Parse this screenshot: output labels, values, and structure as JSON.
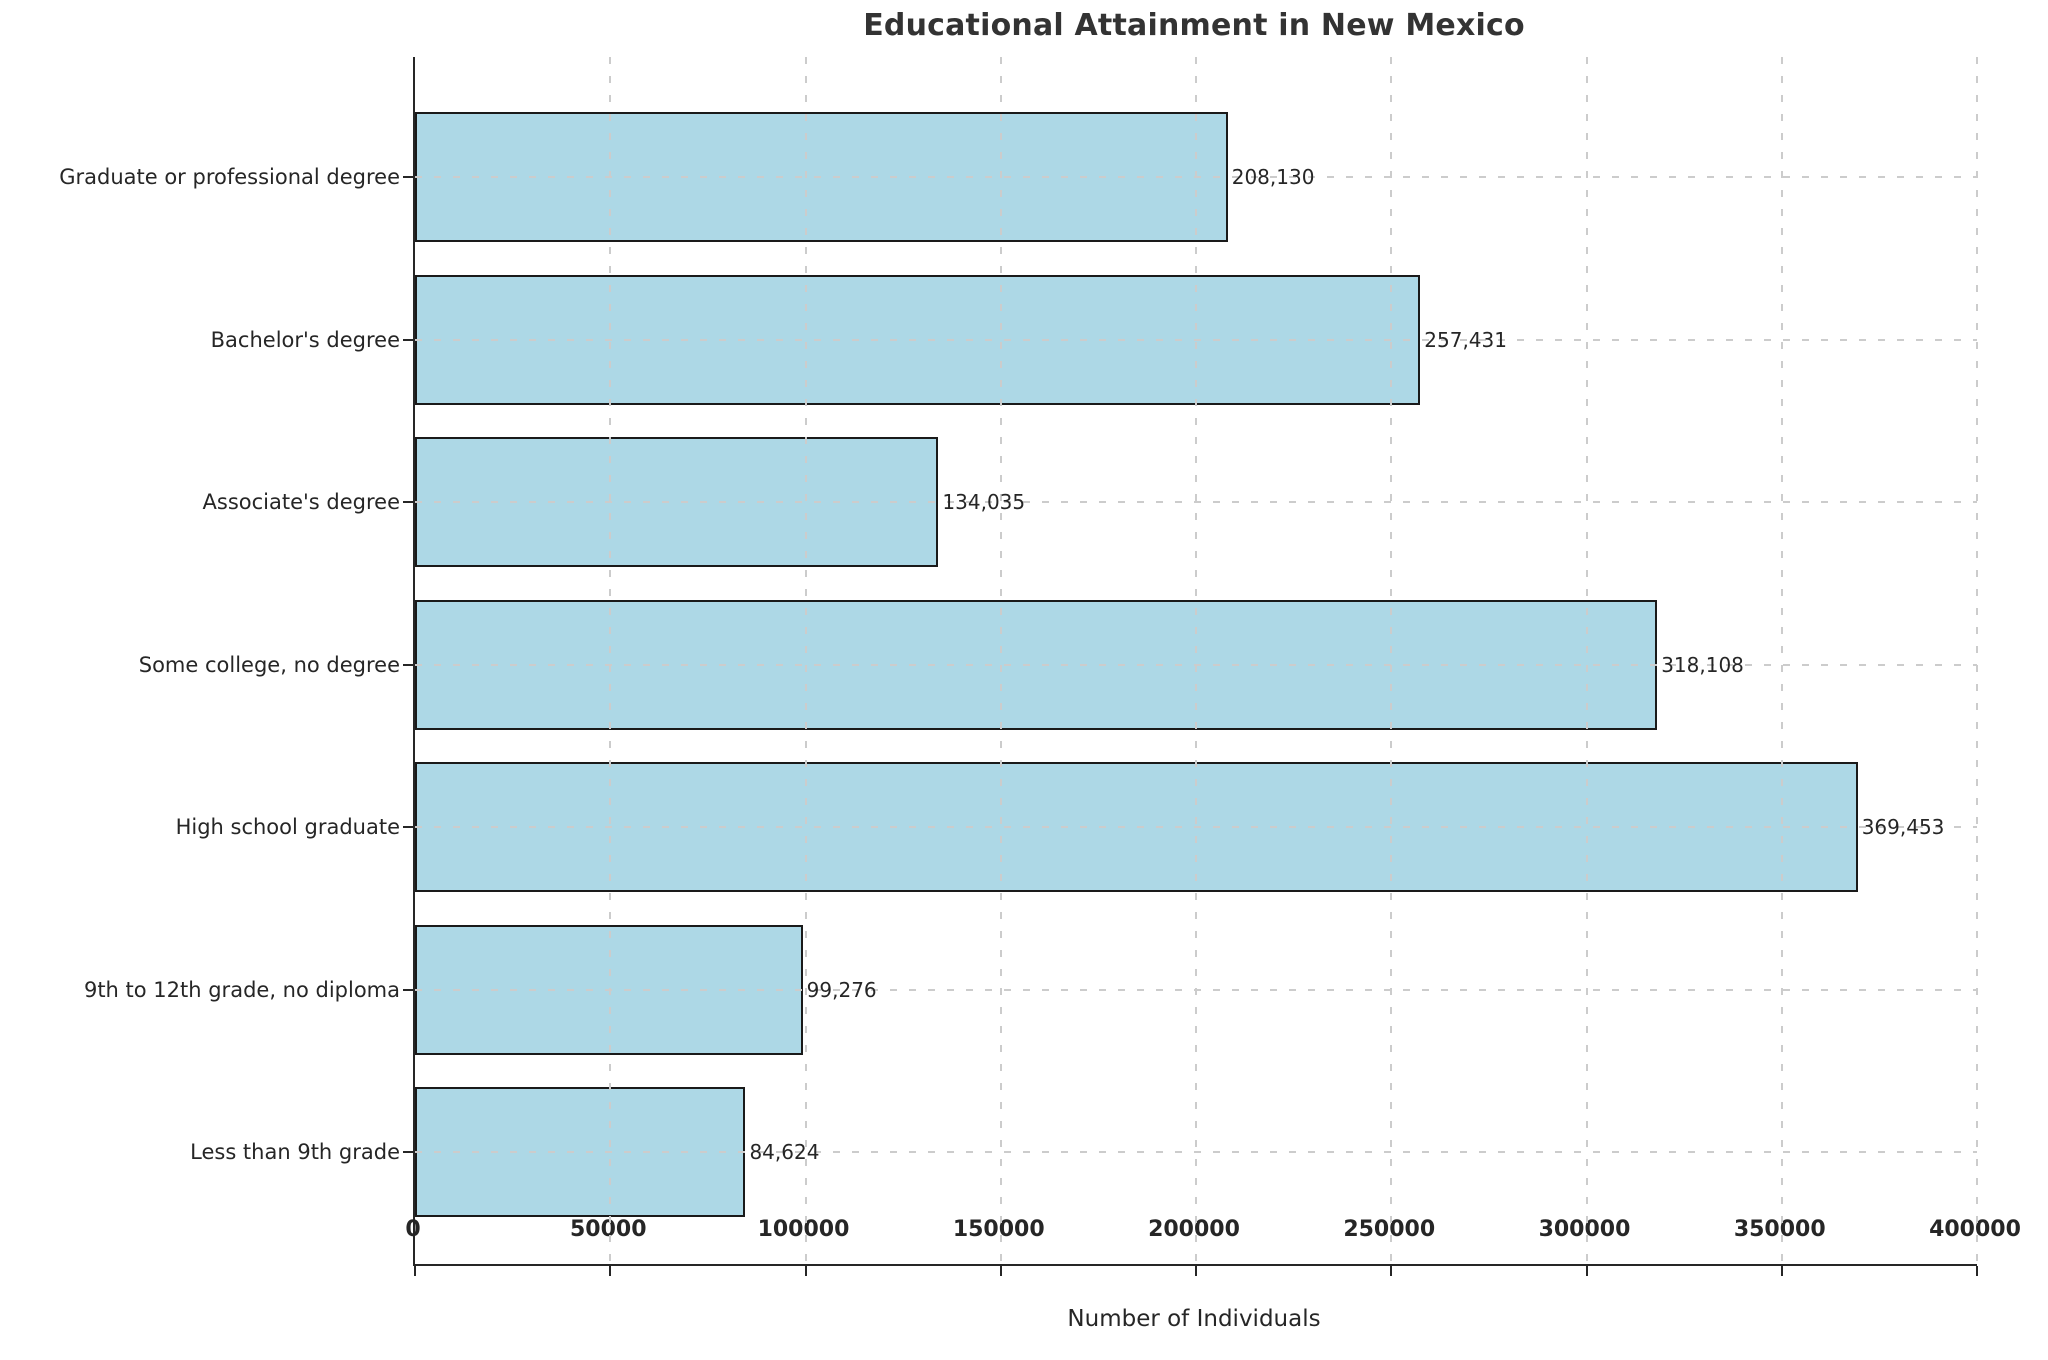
{
  "chart_data": {
    "type": "bar",
    "orientation": "horizontal",
    "title": "Educational Attainment in New Mexico",
    "xlabel": "Number of Individuals",
    "ylabel": "",
    "categories": [
      "Graduate or professional degree",
      "Bachelor's degree",
      "Associate's degree",
      "Some college, no degree",
      "High school graduate",
      "9th to 12th grade, no diploma",
      "Less than 9th grade"
    ],
    "values": [
      208130,
      257431,
      134035,
      318108,
      369453,
      99276,
      84624
    ],
    "value_labels": [
      "208,130",
      "257,431",
      "134,035",
      "318,108",
      "369,453",
      "99,276",
      "84,624"
    ],
    "xlim": [
      0,
      400000
    ],
    "xticks": [
      0,
      50000,
      100000,
      150000,
      200000,
      250000,
      300000,
      350000,
      400000
    ],
    "xtick_labels": [
      "0",
      "50000",
      "100000",
      "150000",
      "200000",
      "250000",
      "300000",
      "350000",
      "400000"
    ],
    "grid": "dashed",
    "legend": "none",
    "colors": {
      "bar_fill": "#ADD8E6",
      "bar_edge": "#1a1a1a",
      "grid": "#cccccc",
      "spine": "#262626",
      "text": "#262626",
      "title": "#333333"
    }
  }
}
